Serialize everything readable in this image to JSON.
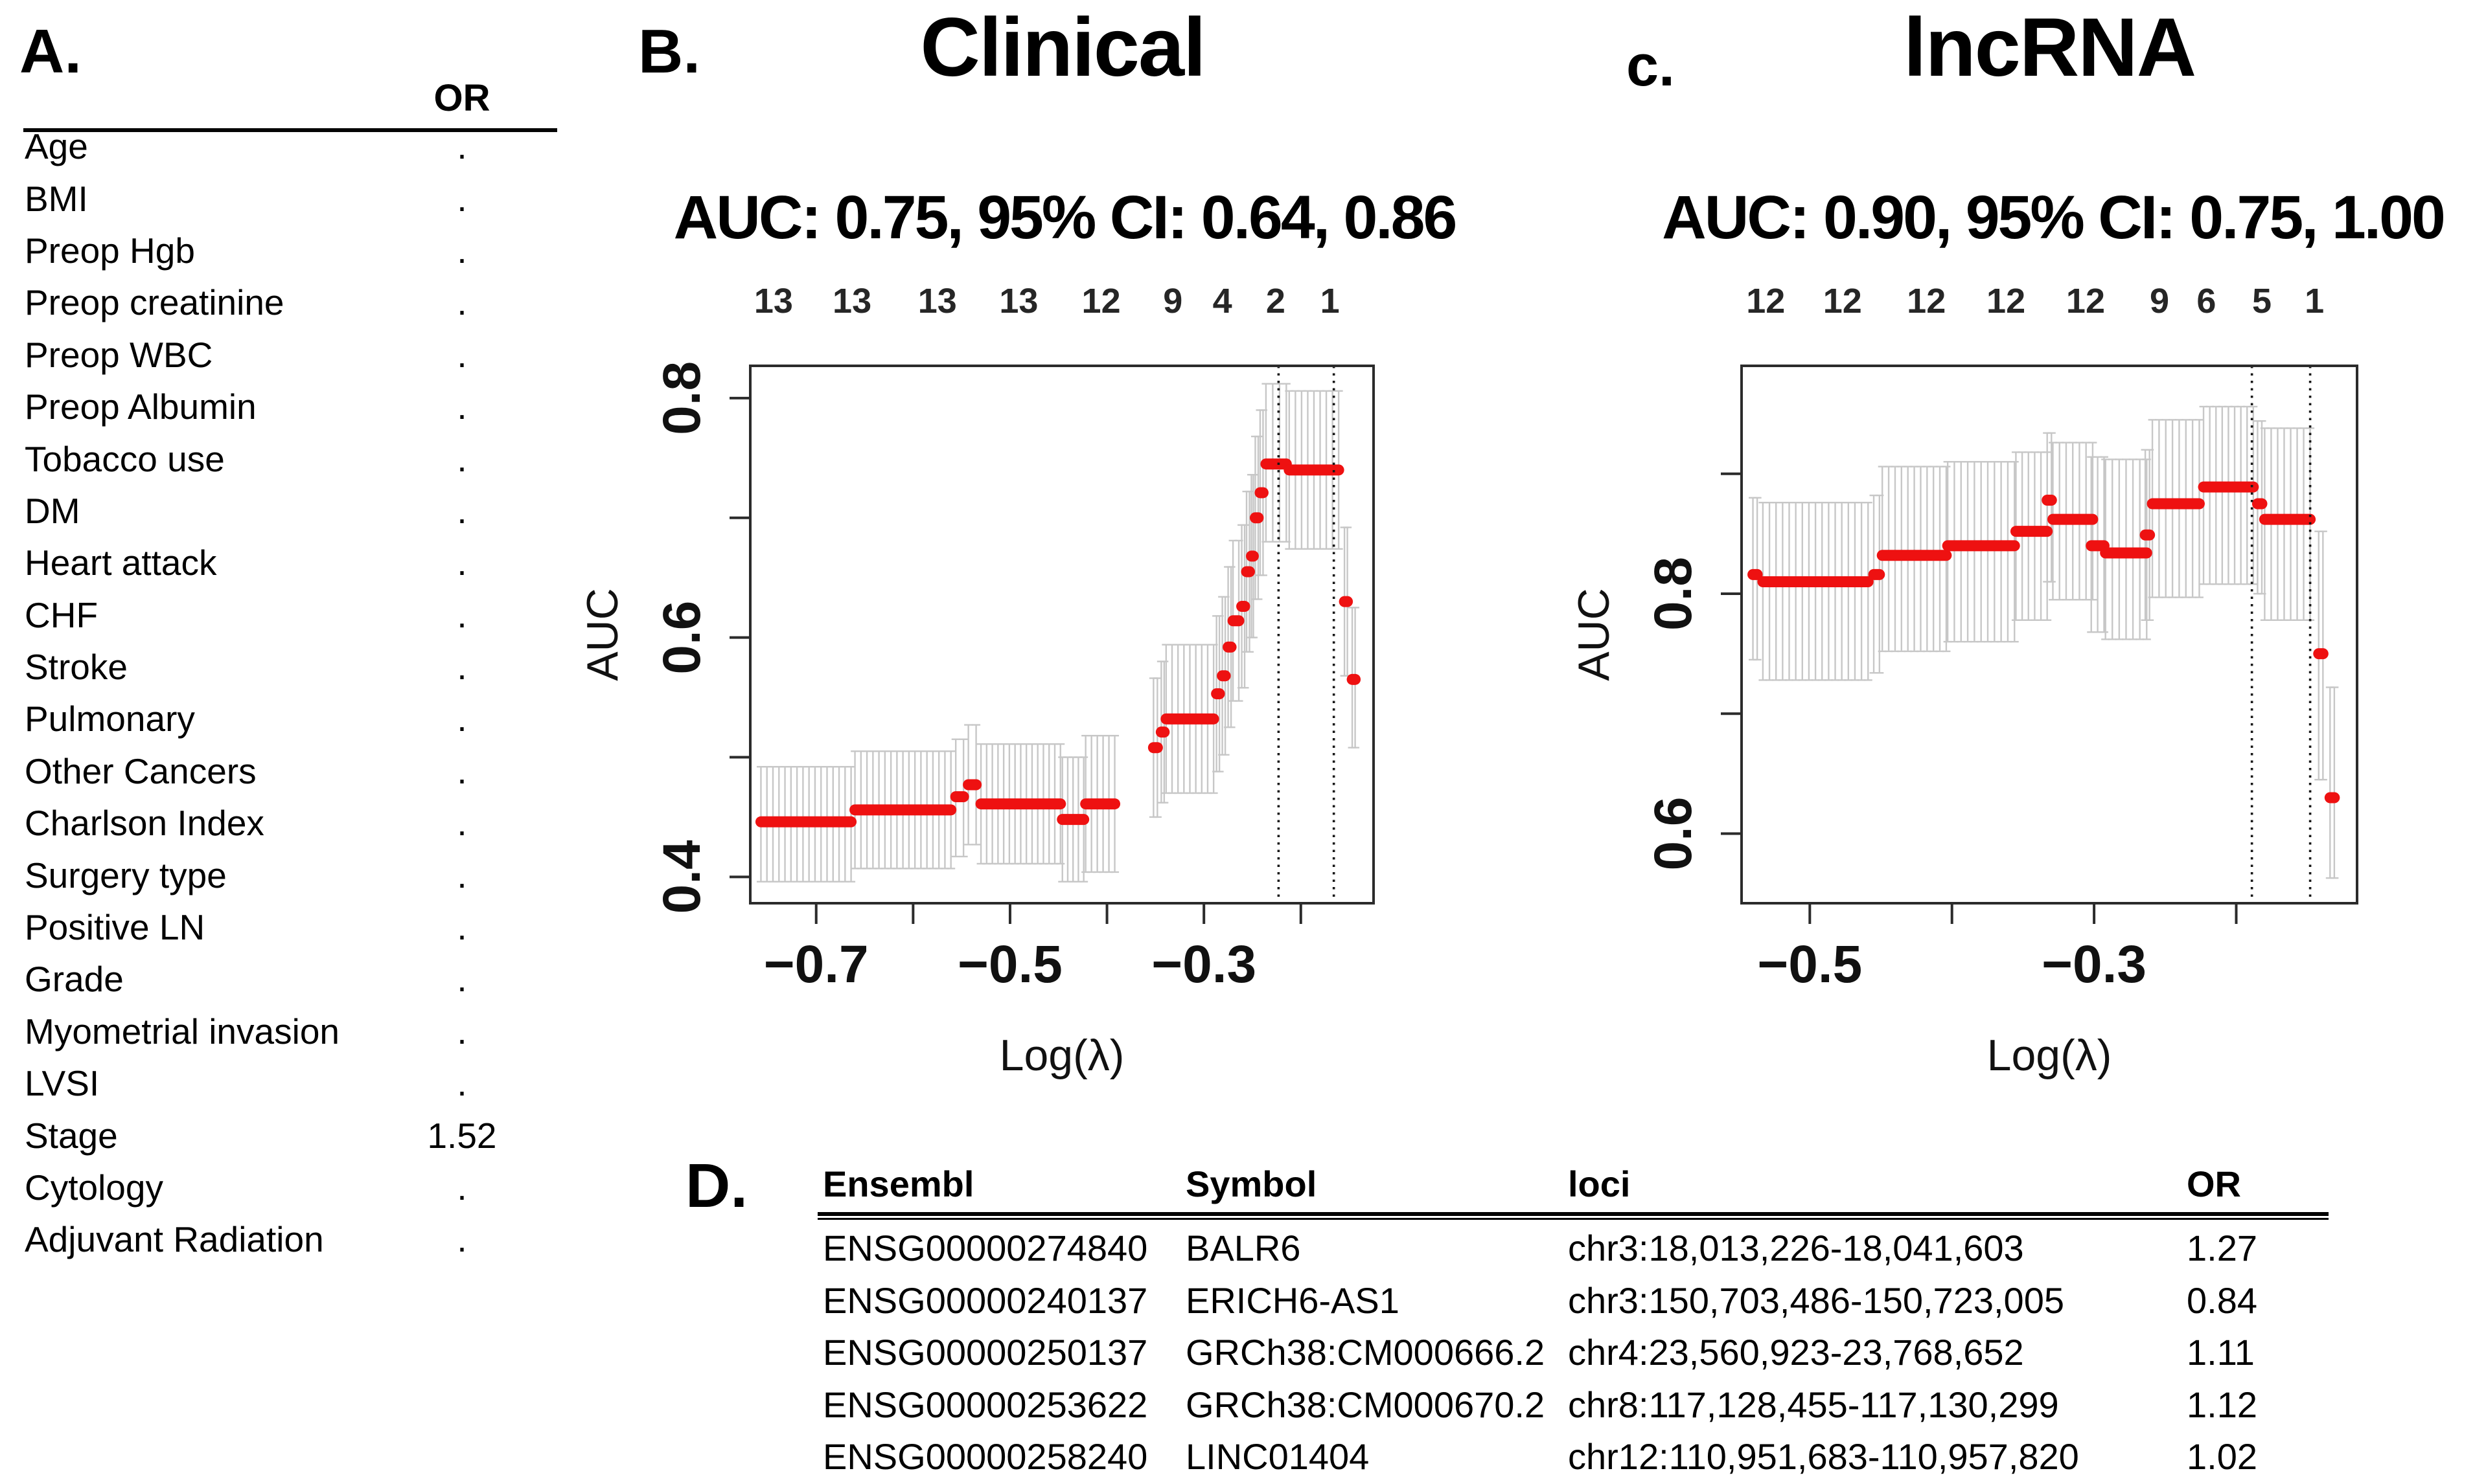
{
  "panelA": {
    "label": "A.",
    "or_header": "OR",
    "rows": [
      {
        "name": "Age",
        "or": "."
      },
      {
        "name": "BMI",
        "or": "."
      },
      {
        "name": "Preop Hgb",
        "or": "."
      },
      {
        "name": "Preop creatinine",
        "or": "."
      },
      {
        "name": "Preop WBC",
        "or": "."
      },
      {
        "name": "Preop Albumin",
        "or": "."
      },
      {
        "name": "Tobacco use",
        "or": "."
      },
      {
        "name": "DM",
        "or": "."
      },
      {
        "name": "Heart attack",
        "or": "."
      },
      {
        "name": "CHF",
        "or": "."
      },
      {
        "name": "Stroke",
        "or": "."
      },
      {
        "name": "Pulmonary",
        "or": "."
      },
      {
        "name": "Other Cancers",
        "or": "."
      },
      {
        "name": "Charlson Index",
        "or": "."
      },
      {
        "name": "Surgery type",
        "or": "."
      },
      {
        "name": "Positive LN",
        "or": "."
      },
      {
        "name": "Grade",
        "or": "."
      },
      {
        "name": "Myometrial invasion",
        "or": "."
      },
      {
        "name": "LVSI",
        "or": "."
      },
      {
        "name": "Stage",
        "or": "1.52"
      },
      {
        "name": "Cytology",
        "or": "."
      },
      {
        "name": "Adjuvant Radiation",
        "or": "."
      }
    ]
  },
  "panelB": {
    "label": "B.",
    "title": "Clinical",
    "subtitle": "AUC: 0.75, 95% CI: 0.64, 0.86"
  },
  "panelC": {
    "label": "c.",
    "title": "lncRNA",
    "subtitle": "AUC: 0.90, 95% CI: 0.75, 1.00"
  },
  "panelD": {
    "label": "D.",
    "columns": [
      "Ensembl",
      "Symbol",
      "loci",
      "OR"
    ],
    "rows": [
      [
        "ENSG00000274840",
        "BALR6",
        "chr3:18,013,226-18,041,603",
        "1.27"
      ],
      [
        "ENSG00000240137",
        "ERICH6-AS1",
        "chr3:150,703,486-150,723,005",
        "0.84"
      ],
      [
        "ENSG00000250137",
        "GRCh38:CM000666.2",
        "chr4:23,560,923-23,768,652",
        "1.11"
      ],
      [
        "ENSG00000253622",
        "GRCh38:CM000670.2",
        "chr8:117,128,455-117,130,299",
        "1.12"
      ],
      [
        "ENSG00000258240",
        "LINC01404",
        "chr12:110,951,683-110,957,820",
        "1.02"
      ]
    ]
  },
  "chart_data": [
    {
      "type": "scatter",
      "title": "Clinical",
      "subtitle": "AUC: 0.75, 95% CI: 0.64, 0.86",
      "xlabel": "Log(λ)",
      "ylabel": "AUC",
      "xlim": [
        -0.768,
        -0.125
      ],
      "ylim": [
        0.378,
        0.827
      ],
      "x_ticks": [
        {
          "v": -0.7,
          "label": "−0.7"
        },
        {
          "v": -0.6,
          "label": ""
        },
        {
          "v": -0.5,
          "label": "−0.5"
        },
        {
          "v": -0.4,
          "label": ""
        },
        {
          "v": -0.3,
          "label": "−0.3"
        },
        {
          "v": -0.2,
          "label": ""
        }
      ],
      "y_ticks": [
        {
          "v": 0.4,
          "label": "0.4"
        },
        {
          "v": 0.5,
          "label": ""
        },
        {
          "v": 0.6,
          "label": "0.6"
        },
        {
          "v": 0.7,
          "label": ""
        },
        {
          "v": 0.8,
          "label": "0.8"
        }
      ],
      "top_labels": [
        {
          "v": -0.744,
          "label": "13"
        },
        {
          "v": -0.663,
          "label": "13"
        },
        {
          "v": -0.575,
          "label": "13"
        },
        {
          "v": -0.491,
          "label": "13"
        },
        {
          "v": -0.406,
          "label": "12"
        },
        {
          "v": -0.332,
          "label": "9"
        },
        {
          "v": -0.281,
          "label": "4"
        },
        {
          "v": -0.226,
          "label": "2"
        },
        {
          "v": -0.17,
          "label": "1"
        }
      ],
      "vlines": [
        -0.223,
        -0.166
      ],
      "bar_step": 0.006,
      "segments": [
        [
          -0.757,
          -0.664,
          0.446,
          0.396,
          0.492
        ],
        [
          -0.66,
          -0.561,
          0.456,
          0.407,
          0.505
        ],
        [
          -0.556,
          -0.548,
          0.467,
          0.417,
          0.515
        ],
        [
          -0.543,
          -0.535,
          0.477,
          0.427,
          0.527
        ],
        [
          -0.53,
          -0.448,
          0.461,
          0.411,
          0.511
        ],
        [
          -0.446,
          -0.424,
          0.448,
          0.396,
          0.5
        ],
        [
          -0.422,
          -0.392,
          0.461,
          0.404,
          0.518
        ],
        [
          -0.352,
          -0.348,
          0.508,
          0.45,
          0.566
        ],
        [
          -0.344,
          -0.341,
          0.521,
          0.462,
          0.58
        ],
        [
          -0.339,
          -0.29,
          0.532,
          0.47,
          0.594
        ],
        [
          -0.287,
          -0.284,
          0.553,
          0.488,
          0.618
        ],
        [
          -0.281,
          -0.278,
          0.568,
          0.502,
          0.634
        ],
        [
          -0.275,
          -0.272,
          0.592,
          0.525,
          0.659
        ],
        [
          -0.27,
          -0.264,
          0.614,
          0.547,
          0.681
        ],
        [
          -0.261,
          -0.258,
          0.626,
          0.558,
          0.694
        ],
        [
          -0.256,
          -0.253,
          0.655,
          0.588,
          0.722
        ],
        [
          -0.251,
          -0.249,
          0.668,
          0.6,
          0.736
        ],
        [
          -0.247,
          -0.244,
          0.7,
          0.632,
          0.768
        ],
        [
          -0.242,
          -0.239,
          0.721,
          0.652,
          0.79
        ],
        [
          -0.236,
          -0.215,
          0.745,
          0.68,
          0.812
        ],
        [
          -0.212,
          -0.161,
          0.74,
          0.674,
          0.806
        ],
        [
          -0.155,
          -0.152,
          0.63,
          0.568,
          0.692
        ],
        [
          -0.147,
          -0.144,
          0.565,
          0.508,
          0.625
        ]
      ],
      "colors": {
        "point": "#ee1111",
        "errorbar": "#c7c7c7",
        "axis": "#2b2b2b"
      }
    },
    {
      "type": "scatter",
      "title": "lncRNA",
      "subtitle": "AUC: 0.90, 95% CI: 0.75, 1.00",
      "xlabel": "Log(λ)",
      "ylabel": "AUC",
      "xlim": [
        -0.548,
        -0.115
      ],
      "ylim": [
        0.542,
        0.99
      ],
      "x_ticks": [
        {
          "v": -0.5,
          "label": "−0.5"
        },
        {
          "v": -0.4,
          "label": ""
        },
        {
          "v": -0.3,
          "label": "−0.3"
        },
        {
          "v": -0.2,
          "label": ""
        }
      ],
      "y_ticks": [
        {
          "v": 0.6,
          "label": "0.6"
        },
        {
          "v": 0.7,
          "label": ""
        },
        {
          "v": 0.8,
          "label": "0.8"
        },
        {
          "v": 0.9,
          "label": ""
        }
      ],
      "top_labels": [
        {
          "v": -0.531,
          "label": "12"
        },
        {
          "v": -0.477,
          "label": "12"
        },
        {
          "v": -0.418,
          "label": "12"
        },
        {
          "v": -0.362,
          "label": "12"
        },
        {
          "v": -0.306,
          "label": "12"
        },
        {
          "v": -0.254,
          "label": "9"
        },
        {
          "v": -0.221,
          "label": "6"
        },
        {
          "v": -0.182,
          "label": "5"
        },
        {
          "v": -0.145,
          "label": "1"
        }
      ],
      "vlines": [
        -0.189,
        -0.148
      ],
      "bar_step": 0.0045,
      "segments": [
        [
          -0.54,
          -0.537,
          0.816,
          0.745,
          0.88
        ],
        [
          -0.533,
          -0.459,
          0.81,
          0.728,
          0.876
        ],
        [
          -0.455,
          -0.451,
          0.816,
          0.734,
          0.882
        ],
        [
          -0.449,
          -0.404,
          0.832,
          0.752,
          0.906
        ],
        [
          -0.403,
          -0.356,
          0.84,
          0.76,
          0.91
        ],
        [
          -0.355,
          -0.333,
          0.852,
          0.778,
          0.918
        ],
        [
          -0.333,
          -0.33,
          0.878,
          0.81,
          0.934
        ],
        [
          -0.329,
          -0.301,
          0.862,
          0.795,
          0.926
        ],
        [
          -0.302,
          -0.293,
          0.84,
          0.768,
          0.914
        ],
        [
          -0.292,
          -0.263,
          0.834,
          0.762,
          0.912
        ],
        [
          -0.264,
          -0.261,
          0.849,
          0.778,
          0.92
        ],
        [
          -0.259,
          -0.226,
          0.875,
          0.797,
          0.945
        ],
        [
          -0.223,
          -0.188,
          0.889,
          0.808,
          0.956
        ],
        [
          -0.185,
          -0.182,
          0.875,
          0.8,
          0.944
        ],
        [
          -0.18,
          -0.148,
          0.862,
          0.778,
          0.938
        ],
        [
          -0.142,
          -0.139,
          0.75,
          0.645,
          0.852
        ],
        [
          -0.134,
          -0.131,
          0.63,
          0.563,
          0.722
        ]
      ],
      "colors": {
        "point": "#ee1111",
        "errorbar": "#c7c7c7",
        "axis": "#2b2b2b"
      }
    }
  ]
}
